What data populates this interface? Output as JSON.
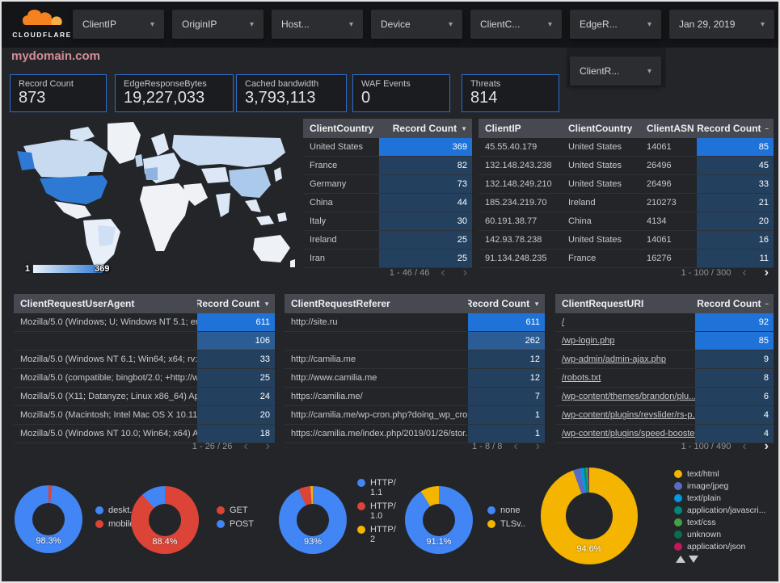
{
  "theme": {
    "count_bright": "#1e72d8",
    "count_medium": "#2b5d94",
    "count_dark": "#24405f",
    "accent_blue": "#2e6ecf",
    "title_pink": "#d58d96"
  },
  "topbar": {
    "brand": "CLOUDFLARE",
    "filters": [
      "ClientIP",
      "OriginIP",
      "Host...",
      "Device",
      "ClientC...",
      "EdgeR..."
    ],
    "date_label": "Jan 29, 2019",
    "filter_row2": "ClientR..."
  },
  "page_title": "mydomain.com",
  "scorecards": [
    {
      "label": "Record Count",
      "value": "873"
    },
    {
      "label": "EdgeResponseBytes",
      "value": "19,227,033"
    },
    {
      "label": "Cached bandwidth",
      "value": "3,793,113"
    },
    {
      "label": "WAF Events",
      "value": "0"
    },
    {
      "label": "Threats",
      "value": "814"
    }
  ],
  "map": {
    "legend_min": "1",
    "legend_max": "369"
  },
  "tables": {
    "client_country": {
      "columns": [
        "ClientCountry",
        "Record Count"
      ],
      "sort_indicator": "▼",
      "rows": [
        {
          "cells": [
            "United States"
          ],
          "count": "369",
          "level": "bright"
        },
        {
          "cells": [
            "France"
          ],
          "count": "82",
          "level": "dark"
        },
        {
          "cells": [
            "Germany"
          ],
          "count": "73",
          "level": "dark"
        },
        {
          "cells": [
            "China"
          ],
          "count": "44",
          "level": "dark"
        },
        {
          "cells": [
            "Italy"
          ],
          "count": "30",
          "level": "dark"
        },
        {
          "cells": [
            "Ireland"
          ],
          "count": "25",
          "level": "dark"
        },
        {
          "cells": [
            "Iran"
          ],
          "count": "25",
          "level": "dark"
        }
      ],
      "pagination": {
        "range": "1 - 46 / 46",
        "prev_enabled": false,
        "next_enabled": false
      }
    },
    "client_ip": {
      "columns": [
        "ClientIP",
        "ClientCountry",
        "ClientASN",
        "Record Count"
      ],
      "sort_indicator": "–",
      "rows": [
        {
          "cells": [
            "45.55.40.179",
            "United States",
            "14061"
          ],
          "count": "85",
          "level": "bright"
        },
        {
          "cells": [
            "132.148.243.238",
            "United States",
            "26496"
          ],
          "count": "45",
          "level": "dark"
        },
        {
          "cells": [
            "132.148.249.210",
            "United States",
            "26496"
          ],
          "count": "33",
          "level": "dark"
        },
        {
          "cells": [
            "185.234.219.70",
            "Ireland",
            "210273"
          ],
          "count": "21",
          "level": "dark"
        },
        {
          "cells": [
            "60.191.38.77",
            "China",
            "4134"
          ],
          "count": "20",
          "level": "dark"
        },
        {
          "cells": [
            "142.93.78.238",
            "United States",
            "14061"
          ],
          "count": "16",
          "level": "dark"
        },
        {
          "cells": [
            "91.134.248.235",
            "France",
            "16276"
          ],
          "count": "11",
          "level": "dark"
        }
      ],
      "pagination": {
        "range": "1 - 100 / 300",
        "prev_enabled": false,
        "next_enabled": true
      }
    },
    "user_agent": {
      "columns": [
        "ClientRequestUserAgent",
        "Record Count"
      ],
      "sort_indicator": "▼",
      "rows": [
        {
          "cells": [
            "Mozilla/5.0 (Windows; U; Windows NT 5.1; en-U..."
          ],
          "count": "611",
          "level": "bright"
        },
        {
          "cells": [
            ""
          ],
          "count": "106",
          "level": "medium"
        },
        {
          "cells": [
            "Mozilla/5.0 (Windows NT 6.1; Win64; x64; rv:64...."
          ],
          "count": "33",
          "level": "dark"
        },
        {
          "cells": [
            "Mozilla/5.0 (compatible; bingbot/2.0; +http://w..."
          ],
          "count": "25",
          "level": "dark"
        },
        {
          "cells": [
            "Mozilla/5.0 (X11; Datanyze; Linux x86_64) Appl..."
          ],
          "count": "24",
          "level": "dark"
        },
        {
          "cells": [
            "Mozilla/5.0 (Macintosh; Intel Mac OS X 10.11; r..."
          ],
          "count": "20",
          "level": "dark"
        },
        {
          "cells": [
            "Mozilla/5.0 (Windows NT 10.0; Win64; x64) App..."
          ],
          "count": "18",
          "level": "dark"
        }
      ],
      "pagination": {
        "range": "1 - 26 / 26",
        "prev_enabled": false,
        "next_enabled": false
      }
    },
    "referer": {
      "columns": [
        "ClientRequestReferer",
        "Record Count"
      ],
      "sort_indicator": "▼",
      "rows": [
        {
          "cells": [
            "http://site.ru"
          ],
          "count": "611",
          "level": "bright"
        },
        {
          "cells": [
            ""
          ],
          "count": "262",
          "level": "medium"
        },
        {
          "cells": [
            "http://camilia.me"
          ],
          "count": "12",
          "level": "dark"
        },
        {
          "cells": [
            "http://www.camilia.me"
          ],
          "count": "12",
          "level": "dark"
        },
        {
          "cells": [
            "https://camilia.me/"
          ],
          "count": "7",
          "level": "dark"
        },
        {
          "cells": [
            "http://camilia.me/wp-cron.php?doing_wp_cron..."
          ],
          "count": "1",
          "level": "dark"
        },
        {
          "cells": [
            "https://camilia.me/index.php/2019/01/26/stor..."
          ],
          "count": "1",
          "level": "dark"
        }
      ],
      "pagination": {
        "range": "1 - 8 / 8",
        "prev_enabled": false,
        "next_enabled": false
      }
    },
    "request_uri": {
      "columns": [
        "ClientRequestURI",
        "Record Count"
      ],
      "sort_indicator": "–",
      "links": true,
      "rows": [
        {
          "cells": [
            "/"
          ],
          "count": "92",
          "level": "bright"
        },
        {
          "cells": [
            "/wp-login.php"
          ],
          "count": "85",
          "level": "bright"
        },
        {
          "cells": [
            "/wp-admin/admin-ajax.php"
          ],
          "count": "9",
          "level": "dark"
        },
        {
          "cells": [
            "/robots.txt"
          ],
          "count": "8",
          "level": "dark"
        },
        {
          "cells": [
            "/wp-content/themes/brandon/plu..."
          ],
          "count": "6",
          "level": "dark"
        },
        {
          "cells": [
            "/wp-content/plugins/revslider/rs-p..."
          ],
          "count": "4",
          "level": "dark"
        },
        {
          "cells": [
            "/wp-content/plugins/speed-booste..."
          ],
          "count": "4",
          "level": "dark"
        }
      ],
      "pagination": {
        "range": "1 - 100 / 490",
        "prev_enabled": false,
        "next_enabled": true
      }
    }
  },
  "chart_data": [
    {
      "type": "heatmap",
      "subtype": "geo-choropleth",
      "metric": "Record Count by ClientCountry",
      "range": [
        1,
        369
      ],
      "regions": {
        "United States": 369,
        "France": 82,
        "Germany": 73,
        "China": 44,
        "Italy": 30,
        "Ireland": 25,
        "Iran": 25
      }
    },
    {
      "type": "pie",
      "labels": [
        "deskt...",
        "mobile"
      ],
      "values": [
        98.3,
        1.7
      ],
      "colors": [
        "#4285f4",
        "#db4437"
      ],
      "center_label": "98.3%",
      "rotate_deg": 6
    },
    {
      "type": "pie",
      "labels": [
        "GET",
        "POST"
      ],
      "values": [
        88.4,
        11.6
      ],
      "colors": [
        "#db4437",
        "#4285f4"
      ],
      "center_label": "88.4%",
      "rotate_deg": 0
    },
    {
      "type": "pie",
      "labels": [
        "HTTP/1.1",
        "HTTP/1.0",
        "HTTP/2"
      ],
      "values": [
        93,
        5.9,
        1.1
      ],
      "colors": [
        "#4285f4",
        "#db4437",
        "#f4b400"
      ],
      "center_label": "93%",
      "rotate_deg": 0
    },
    {
      "type": "pie",
      "labels": [
        "none",
        "TLSv.."
      ],
      "values": [
        91.1,
        8.9
      ],
      "colors": [
        "#4285f4",
        "#f4b400"
      ],
      "center_label": "91.1%",
      "rotate_deg": 0
    },
    {
      "type": "pie",
      "labels": [
        "text/html",
        "image/jpeg",
        "text/plain",
        "application/javascri...",
        "text/css",
        "unknown",
        "application/json"
      ],
      "values": [
        94.6,
        2.4,
        1.1,
        0.8,
        0.5,
        0.3,
        0.3
      ],
      "colors": [
        "#f4b400",
        "#5c6bc0",
        "#0398e0",
        "#00897b",
        "#43a047",
        "#0b6e4e",
        "#c2185b"
      ],
      "center_label": "94.6%",
      "rotate_deg": 0
    }
  ]
}
